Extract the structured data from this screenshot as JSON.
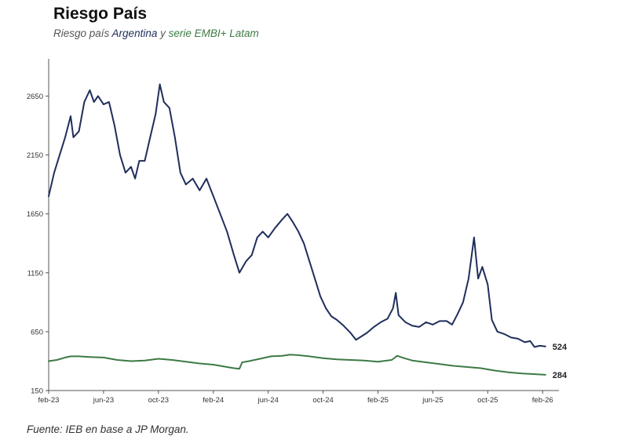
{
  "title": "Riesgo País",
  "subtitle": {
    "prefix": "Riesgo país",
    "argentina": "Argentina",
    "connector": "y",
    "embi": "serie EMBI+ Latam"
  },
  "footer": "Fuente: IEB en base a JP Morgan.",
  "colors": {
    "argentina": "#1f2e5c",
    "embi": "#3d7a45",
    "axis": "#555555"
  },
  "chart_data": {
    "type": "line",
    "title": "Riesgo País",
    "xlabel": "",
    "ylabel": "",
    "ylim": [
      150,
      2900
    ],
    "yticks": [
      150,
      650,
      1150,
      1650,
      2150,
      2650
    ],
    "xlim": [
      0,
      36.5
    ],
    "xticks": [
      {
        "x": 0,
        "label": "feb-23"
      },
      {
        "x": 4,
        "label": "jun-23"
      },
      {
        "x": 8,
        "label": "oct-23"
      },
      {
        "x": 12,
        "label": "feb-24"
      },
      {
        "x": 16,
        "label": "jun-24"
      },
      {
        "x": 20,
        "label": "oct-24"
      },
      {
        "x": 24,
        "label": "feb-25"
      },
      {
        "x": 28,
        "label": "jun-25"
      },
      {
        "x": 32,
        "label": "oct-25"
      },
      {
        "x": 36,
        "label": "feb-26"
      }
    ],
    "series": [
      {
        "name": "Argentina",
        "color": "#1f2e5c",
        "end_label": "524",
        "points": [
          [
            0,
            1800
          ],
          [
            0.4,
            2000
          ],
          [
            0.8,
            2150
          ],
          [
            1.2,
            2300
          ],
          [
            1.6,
            2480
          ],
          [
            1.8,
            2300
          ],
          [
            2.2,
            2350
          ],
          [
            2.6,
            2600
          ],
          [
            3,
            2700
          ],
          [
            3.3,
            2600
          ],
          [
            3.6,
            2650
          ],
          [
            4,
            2580
          ],
          [
            4.4,
            2600
          ],
          [
            4.8,
            2400
          ],
          [
            5.2,
            2150
          ],
          [
            5.6,
            2000
          ],
          [
            6,
            2050
          ],
          [
            6.3,
            1950
          ],
          [
            6.6,
            2100
          ],
          [
            7,
            2100
          ],
          [
            7.4,
            2300
          ],
          [
            7.8,
            2500
          ],
          [
            8.1,
            2750
          ],
          [
            8.4,
            2600
          ],
          [
            8.8,
            2550
          ],
          [
            9.2,
            2300
          ],
          [
            9.6,
            2000
          ],
          [
            10,
            1900
          ],
          [
            10.5,
            1950
          ],
          [
            11,
            1850
          ],
          [
            11.5,
            1950
          ],
          [
            12,
            1800
          ],
          [
            12.5,
            1650
          ],
          [
            13,
            1500
          ],
          [
            13.5,
            1300
          ],
          [
            13.9,
            1150
          ],
          [
            14.4,
            1250
          ],
          [
            14.8,
            1300
          ],
          [
            15.2,
            1450
          ],
          [
            15.6,
            1500
          ],
          [
            16,
            1450
          ],
          [
            16.5,
            1530
          ],
          [
            17,
            1600
          ],
          [
            17.4,
            1650
          ],
          [
            17.8,
            1580
          ],
          [
            18.2,
            1500
          ],
          [
            18.6,
            1400
          ],
          [
            19,
            1250
          ],
          [
            19.4,
            1100
          ],
          [
            19.8,
            950
          ],
          [
            20.2,
            850
          ],
          [
            20.6,
            780
          ],
          [
            21,
            750
          ],
          [
            21.5,
            700
          ],
          [
            22,
            640
          ],
          [
            22.4,
            580
          ],
          [
            22.8,
            610
          ],
          [
            23.2,
            640
          ],
          [
            23.7,
            690
          ],
          [
            24.2,
            730
          ],
          [
            24.7,
            760
          ],
          [
            25.1,
            850
          ],
          [
            25.3,
            980
          ],
          [
            25.5,
            790
          ],
          [
            26,
            730
          ],
          [
            26.5,
            700
          ],
          [
            27,
            690
          ],
          [
            27.5,
            730
          ],
          [
            28,
            710
          ],
          [
            28.5,
            740
          ],
          [
            29,
            740
          ],
          [
            29.4,
            710
          ],
          [
            29.8,
            800
          ],
          [
            30.2,
            900
          ],
          [
            30.6,
            1100
          ],
          [
            31,
            1450
          ],
          [
            31.3,
            1100
          ],
          [
            31.6,
            1200
          ],
          [
            32,
            1050
          ],
          [
            32.3,
            750
          ],
          [
            32.7,
            650
          ],
          [
            33.2,
            630
          ],
          [
            33.7,
            600
          ],
          [
            34.2,
            590
          ],
          [
            34.7,
            560
          ],
          [
            35.1,
            570
          ],
          [
            35.4,
            520
          ],
          [
            35.8,
            530
          ],
          [
            36.2,
            524
          ]
        ]
      },
      {
        "name": "EMBI+ Latam",
        "color": "#3d7a45",
        "end_label": "284",
        "points": [
          [
            0,
            400
          ],
          [
            0.6,
            410
          ],
          [
            1.2,
            430
          ],
          [
            1.6,
            440
          ],
          [
            2.2,
            440
          ],
          [
            3,
            435
          ],
          [
            4,
            430
          ],
          [
            5,
            410
          ],
          [
            6,
            400
          ],
          [
            7,
            405
          ],
          [
            8,
            420
          ],
          [
            9,
            410
          ],
          [
            10,
            395
          ],
          [
            11,
            380
          ],
          [
            12,
            370
          ],
          [
            12.5,
            360
          ],
          [
            13,
            350
          ],
          [
            13.5,
            340
          ],
          [
            13.9,
            335
          ],
          [
            14.1,
            390
          ],
          [
            14.6,
            400
          ],
          [
            15.4,
            420
          ],
          [
            16.2,
            440
          ],
          [
            17,
            445
          ],
          [
            17.6,
            455
          ],
          [
            18.2,
            450
          ],
          [
            19,
            440
          ],
          [
            20,
            425
          ],
          [
            21,
            415
          ],
          [
            22,
            410
          ],
          [
            23,
            405
          ],
          [
            24,
            395
          ],
          [
            25,
            410
          ],
          [
            25.4,
            445
          ],
          [
            25.9,
            425
          ],
          [
            26.5,
            405
          ],
          [
            27.5,
            390
          ],
          [
            28.5,
            375
          ],
          [
            29.5,
            360
          ],
          [
            30.5,
            350
          ],
          [
            31.5,
            340
          ],
          [
            32.5,
            320
          ],
          [
            33.5,
            305
          ],
          [
            34.5,
            295
          ],
          [
            35.3,
            290
          ],
          [
            36.2,
            284
          ]
        ]
      }
    ]
  }
}
